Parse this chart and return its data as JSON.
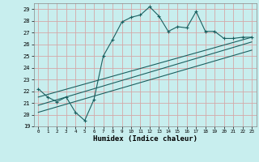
{
  "xlabel": "Humidex (Indice chaleur)",
  "ylabel": "",
  "background_color": "#c8eeee",
  "grid_color": "#d4a8a8",
  "line_color": "#1a6060",
  "xlim": [
    -0.5,
    23.5
  ],
  "ylim": [
    19,
    29.5
  ],
  "xticks": [
    0,
    1,
    2,
    3,
    4,
    5,
    6,
    7,
    8,
    9,
    10,
    11,
    12,
    13,
    14,
    15,
    16,
    17,
    18,
    19,
    20,
    21,
    22,
    23
  ],
  "yticks": [
    19,
    20,
    21,
    22,
    23,
    24,
    25,
    26,
    27,
    28,
    29
  ],
  "series1_x": [
    0,
    1,
    2,
    3,
    4,
    5,
    6,
    7,
    8,
    9,
    10,
    11,
    12,
    13,
    14,
    15,
    16,
    17,
    18,
    19,
    20,
    21,
    22,
    23
  ],
  "series1_y": [
    22.2,
    21.5,
    21.1,
    21.5,
    20.2,
    19.5,
    21.3,
    25.0,
    26.4,
    27.9,
    28.3,
    28.5,
    29.2,
    28.4,
    27.1,
    27.5,
    27.4,
    28.8,
    27.1,
    27.1,
    26.5,
    26.5,
    26.6,
    26.6
  ],
  "series2_x": [
    0,
    23
  ],
  "series2_y": [
    21.5,
    26.6
  ],
  "series3_x": [
    0,
    23
  ],
  "series3_y": [
    20.8,
    26.2
  ],
  "series4_x": [
    0,
    23
  ],
  "series4_y": [
    20.2,
    25.5
  ]
}
